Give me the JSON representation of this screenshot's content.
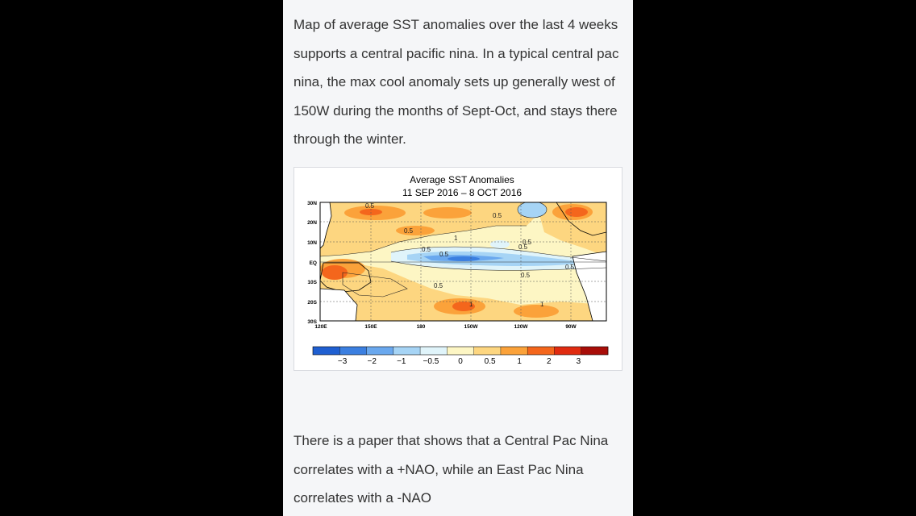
{
  "post": {
    "paragraph1": "Map of average SST anomalies over the last 4 weeks supports a central pacific nina.  In a typical central pac nina, the max cool anomaly sets up generally west of 150W during the months of Sept-Oct, and stays there through the winter.",
    "paragraph2": "There is a paper that shows that a Central Pac Nina correlates with a +NAO, while an East Pac Nina correlates with a -NAO"
  },
  "figure": {
    "title": "Average SST Anomalies",
    "subtitle": "11 SEP 2016 – 8 OCT 2016",
    "lat_labels": [
      "30N",
      "20N",
      "10N",
      "EQ",
      "10S",
      "20S",
      "30S"
    ],
    "lon_labels": [
      "120E",
      "150E",
      "180",
      "150W",
      "120W",
      "90W"
    ],
    "contour_labels": [
      "0.5",
      "0.5",
      "0.5",
      "0.5",
      "0.5",
      "0.5",
      "0.5",
      "0.5",
      "0.5",
      "0.5",
      "1",
      "1",
      "1"
    ],
    "colorbar": {
      "colors": [
        "#1f5fd1",
        "#3b7fe0",
        "#6aa8ee",
        "#a6d4f5",
        "#e0f4fa",
        "#fdf6c4",
        "#fdd680",
        "#fba23a",
        "#f4661c",
        "#e02b10",
        "#a80d08"
      ],
      "tick_labels": [
        "−3",
        "−2",
        "−1",
        "−0.5",
        "0",
        "0.5",
        "1",
        "2",
        "3"
      ]
    },
    "palette": {
      "land": "#ffffff",
      "neutral": "#fdf6c4",
      "warm1": "#fdd680",
      "warm2": "#fba23a",
      "warm3": "#f4661c",
      "cool1": "#e0f4fa",
      "cool2": "#a6d4f5",
      "cool3": "#6aa8ee",
      "cool4": "#3b7fe0"
    }
  }
}
